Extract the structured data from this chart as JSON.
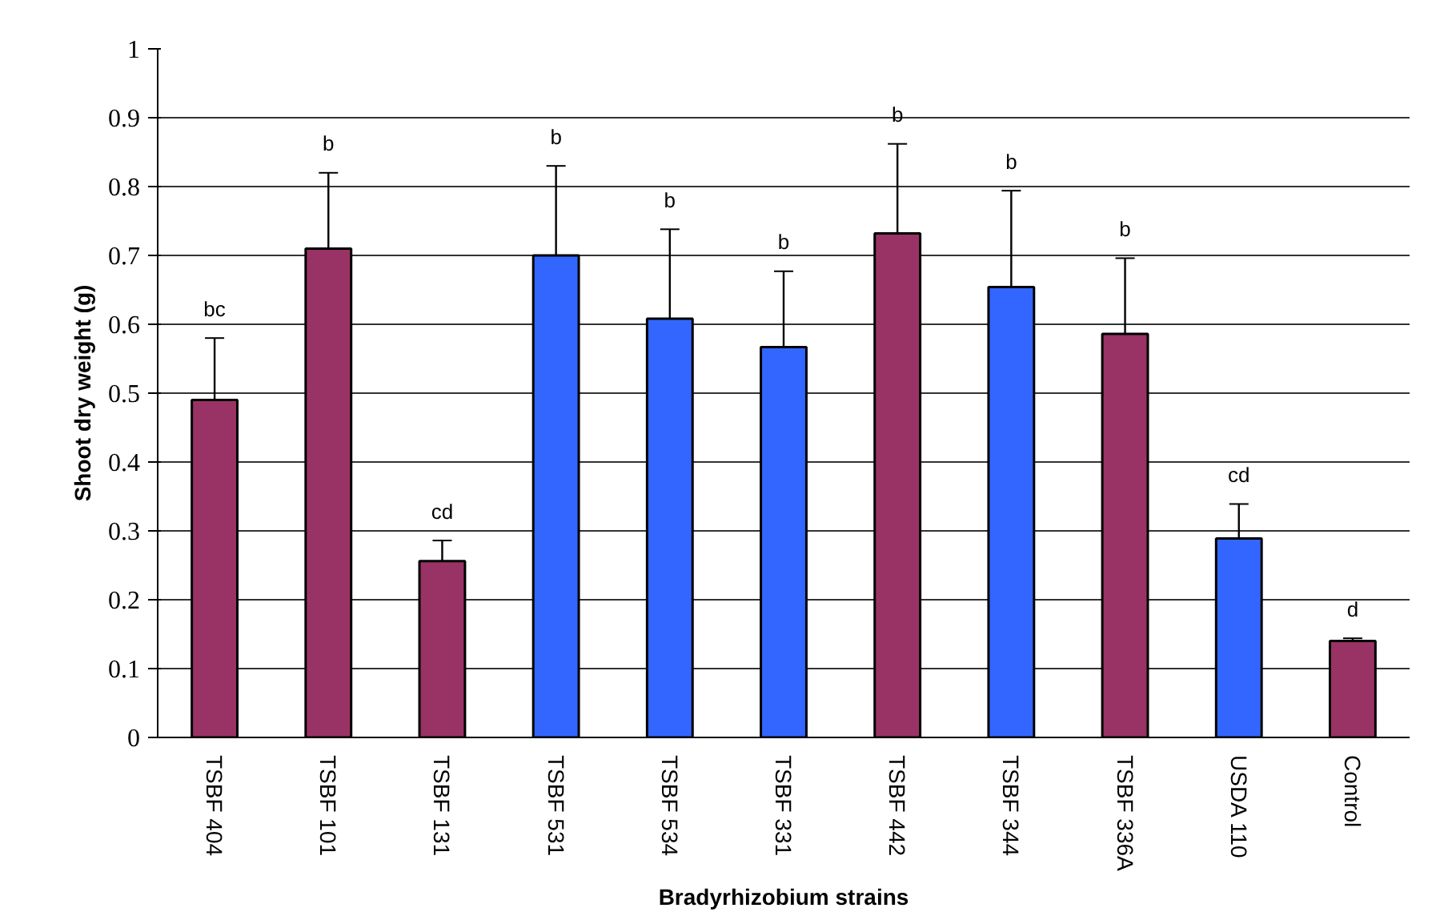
{
  "chart_data": {
    "type": "bar",
    "xlabel": "Bradyrhizobium strains",
    "ylabel": "Shoot dry weight (g)",
    "categories": [
      "TSBF 404",
      "TSBF 101",
      "TSBF 131",
      "TSBF 531",
      "TSBF 534",
      "TSBF 331",
      "TSBF 442",
      "TSBF 344",
      "TSBF 336A",
      "USDA 110",
      "Control"
    ],
    "values": [
      0.49,
      0.71,
      0.256,
      0.7,
      0.608,
      0.567,
      0.732,
      0.654,
      0.586,
      0.289,
      0.14
    ],
    "errors": [
      0.09,
      0.11,
      0.03,
      0.13,
      0.13,
      0.11,
      0.13,
      0.14,
      0.11,
      0.05,
      0.004
    ],
    "colors": [
      "#993366",
      "#993366",
      "#993366",
      "#3366ff",
      "#3366ff",
      "#3366ff",
      "#993366",
      "#3366ff",
      "#993366",
      "#3366ff",
      "#993366"
    ],
    "annotations": [
      "bc",
      "b",
      "cd",
      "b",
      "b",
      "b",
      "b",
      "b",
      "b",
      "cd",
      "d"
    ],
    "ylim": [
      0,
      1
    ],
    "yticks": [
      0,
      0.1,
      0.2,
      0.3,
      0.4,
      0.5,
      0.6,
      0.7,
      0.8,
      0.9,
      1
    ],
    "grid": "y"
  }
}
